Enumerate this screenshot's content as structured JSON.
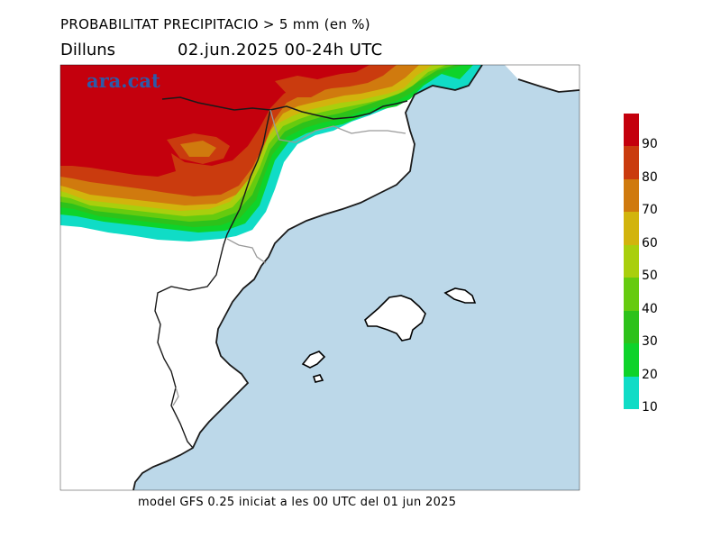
{
  "header": {
    "title": "PROBABILITAT PRECIPITACIO > 5 mm (en %)",
    "day": "Dilluns",
    "date_range": "02.jun.2025 00-24h UTC"
  },
  "logo": {
    "text": "ara.cat"
  },
  "legend": {
    "labels": [
      "90",
      "80",
      "70",
      "60",
      "50",
      "40",
      "30",
      "20",
      "10"
    ],
    "colors": [
      "#c4000d",
      "#ca3b0e",
      "#d07a0e",
      "#d2b40d",
      "#a9cf0d",
      "#66cb0f",
      "#2dc21a",
      "#0ed32a",
      "#10dcc6"
    ]
  },
  "map": {
    "sea_color": "#bcd8e9",
    "land_color": "#ffffff",
    "region": "Catalunya, País Valencià, Illes Balears"
  },
  "footer": {
    "text": "model GFS 0.25 iniciat a les 00 UTC del 01 jun 2025"
  }
}
